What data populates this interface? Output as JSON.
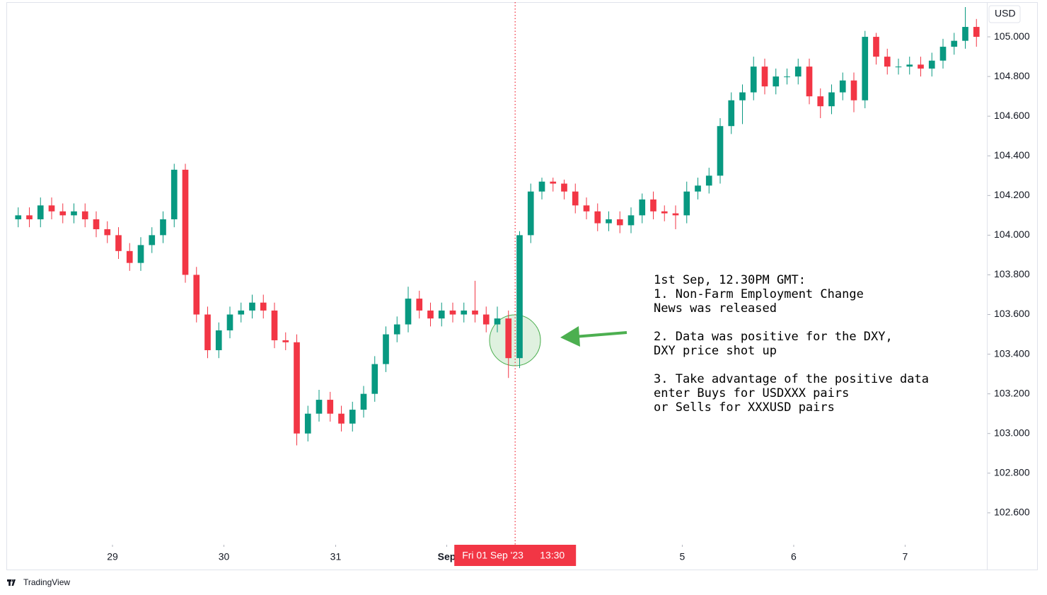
{
  "chart_data": {
    "type": "candlestick",
    "currency": "USD",
    "x": [
      0,
      1,
      2,
      3,
      4,
      5,
      6,
      7,
      8,
      9,
      10,
      11,
      12,
      13,
      14,
      15,
      16,
      17,
      18,
      19,
      20,
      21,
      22,
      23,
      24,
      25,
      26,
      27,
      28,
      29,
      30,
      31,
      32,
      33,
      34,
      35,
      36,
      37,
      38,
      39,
      40,
      41,
      42,
      43,
      44,
      45,
      46,
      47,
      48,
      49,
      50,
      51,
      52,
      53,
      54,
      55,
      56,
      57,
      58,
      59,
      60,
      61,
      62,
      63,
      64,
      65,
      66,
      67,
      68,
      69,
      70,
      71,
      72,
      73,
      74,
      75,
      76,
      77,
      78,
      79,
      80,
      81,
      82,
      83,
      84,
      85,
      86
    ],
    "open": [
      104.08,
      104.1,
      104.08,
      104.15,
      104.12,
      104.1,
      104.12,
      104.08,
      104.03,
      104.0,
      103.92,
      103.86,
      103.95,
      104.0,
      104.08,
      104.33,
      103.8,
      103.6,
      103.42,
      103.52,
      103.6,
      103.62,
      103.66,
      103.62,
      103.47,
      103.46,
      103.0,
      103.1,
      103.17,
      103.1,
      103.05,
      103.12,
      103.2,
      103.35,
      103.5,
      103.55,
      103.68,
      103.62,
      103.58,
      103.62,
      103.6,
      103.62,
      103.6,
      103.55,
      103.58,
      103.38,
      104.0,
      104.22,
      104.27,
      104.26,
      104.22,
      104.15,
      104.12,
      104.06,
      104.08,
      104.05,
      104.1,
      104.18,
      104.12,
      104.11,
      104.1,
      104.22,
      104.25,
      104.3,
      104.55,
      104.68,
      104.72,
      104.85,
      104.75,
      104.8,
      104.8,
      104.85,
      104.7,
      104.65,
      104.72,
      104.78,
      104.68,
      105.0,
      104.9,
      104.85,
      104.85,
      104.86,
      104.84,
      104.88,
      104.95,
      104.98,
      105.05
    ],
    "high": [
      104.14,
      104.14,
      104.19,
      104.19,
      104.16,
      104.16,
      104.16,
      104.12,
      104.07,
      104.04,
      103.96,
      103.99,
      104.04,
      104.12,
      104.36,
      104.36,
      103.84,
      103.64,
      103.56,
      103.64,
      103.66,
      103.7,
      103.7,
      103.66,
      103.51,
      103.5,
      103.14,
      103.22,
      103.21,
      103.14,
      103.16,
      103.24,
      103.39,
      103.54,
      103.59,
      103.74,
      103.72,
      103.66,
      103.66,
      103.66,
      103.66,
      103.77,
      103.64,
      103.64,
      103.62,
      104.02,
      104.26,
      104.29,
      104.29,
      104.28,
      104.26,
      104.19,
      104.16,
      104.12,
      104.12,
      104.14,
      104.21,
      104.22,
      104.15,
      104.15,
      104.27,
      104.29,
      104.34,
      104.59,
      104.72,
      104.76,
      104.9,
      104.89,
      104.84,
      104.84,
      104.89,
      104.89,
      104.74,
      104.76,
      104.82,
      104.82,
      105.03,
      105.02,
      104.94,
      104.89,
      104.9,
      104.9,
      104.92,
      104.99,
      105.02,
      105.15,
      105.09
    ],
    "low": [
      104.04,
      104.04,
      104.04,
      104.08,
      104.06,
      104.06,
      104.04,
      103.99,
      103.96,
      103.88,
      103.82,
      103.82,
      103.91,
      103.96,
      104.04,
      103.76,
      103.56,
      103.38,
      103.38,
      103.48,
      103.56,
      103.58,
      103.58,
      103.43,
      103.42,
      102.94,
      102.96,
      103.06,
      103.06,
      103.01,
      103.01,
      103.08,
      103.16,
      103.31,
      103.46,
      103.51,
      103.58,
      103.54,
      103.54,
      103.56,
      103.56,
      103.56,
      103.51,
      103.51,
      103.28,
      103.33,
      103.96,
      104.18,
      104.22,
      104.18,
      104.11,
      104.08,
      104.02,
      104.02,
      104.01,
      104.01,
      104.06,
      104.08,
      104.07,
      104.03,
      104.06,
      104.18,
      104.21,
      104.26,
      104.51,
      104.56,
      104.68,
      104.71,
      104.71,
      104.76,
      104.76,
      104.66,
      104.59,
      104.61,
      104.68,
      104.62,
      104.64,
      104.86,
      104.81,
      104.81,
      104.81,
      104.8,
      104.8,
      104.84,
      104.91,
      104.94,
      104.95
    ],
    "close": [
      104.1,
      104.08,
      104.15,
      104.12,
      104.1,
      104.12,
      104.08,
      104.03,
      104.0,
      103.92,
      103.86,
      103.95,
      104.0,
      104.08,
      104.33,
      103.8,
      103.6,
      103.42,
      103.52,
      103.6,
      103.62,
      103.66,
      103.62,
      103.47,
      103.46,
      103.0,
      103.1,
      103.17,
      103.1,
      103.05,
      103.12,
      103.2,
      103.35,
      103.5,
      103.55,
      103.68,
      103.62,
      103.58,
      103.62,
      103.6,
      103.62,
      103.6,
      103.55,
      103.58,
      103.38,
      104.0,
      104.22,
      104.27,
      104.26,
      104.22,
      104.15,
      104.12,
      104.06,
      104.08,
      104.05,
      104.1,
      104.18,
      104.12,
      104.11,
      104.1,
      104.22,
      104.25,
      104.3,
      104.55,
      104.68,
      104.72,
      104.85,
      104.75,
      104.8,
      104.8,
      104.85,
      104.7,
      104.65,
      104.72,
      104.78,
      104.68,
      105.0,
      104.9,
      104.85,
      104.85,
      104.86,
      104.84,
      104.88,
      104.95,
      104.98,
      105.05,
      105.0
    ],
    "up_color": "#089981",
    "down_color": "#f23645",
    "xlim": [
      -1,
      87
    ],
    "xticks": [
      {
        "value": 8.46,
        "label": "29"
      },
      {
        "value": 18.46,
        "label": "30"
      },
      {
        "value": 28.49,
        "label": "31"
      },
      {
        "value": 38.46,
        "label": "Sep"
      },
      {
        "value": 59.6,
        "label": "5"
      },
      {
        "value": 69.6,
        "label": "6"
      },
      {
        "value": 79.6,
        "label": "7"
      }
    ],
    "ylim": [
      102.439,
      105.175
    ],
    "yticks": [
      {
        "value": 102.6,
        "label": "102.600"
      },
      {
        "value": 102.8,
        "label": "102.800"
      },
      {
        "value": 103.0,
        "label": "103.000"
      },
      {
        "value": 103.2,
        "label": "103.200"
      },
      {
        "value": 103.4,
        "label": "103.400"
      },
      {
        "value": 103.6,
        "label": "103.600"
      },
      {
        "value": 103.8,
        "label": "103.800"
      },
      {
        "value": 104.0,
        "label": "104.000"
      },
      {
        "value": 104.2,
        "label": "104.200"
      },
      {
        "value": 104.4,
        "label": "104.400"
      },
      {
        "value": 104.6,
        "label": "104.600"
      },
      {
        "value": 104.8,
        "label": "104.800"
      },
      {
        "value": 105.0,
        "label": "105.000"
      }
    ],
    "grid": false,
    "crosshair": {
      "x": 44.6,
      "date": "Fri 01 Sep '23",
      "time": "13:30"
    },
    "annotation": [
      [
        "1st Sep, 12.30PM GMT:",
        "1. Non-Farm Employment Change",
        "News was released"
      ],
      [
        "2. Data was positive for the DXY,",
        "DXY price shot up"
      ],
      [
        "3. Take advantage of the positive data",
        "enter Buys for USDXXX pairs",
        "or Sells for XXXUSD pairs"
      ]
    ],
    "brand": "TradingView"
  }
}
